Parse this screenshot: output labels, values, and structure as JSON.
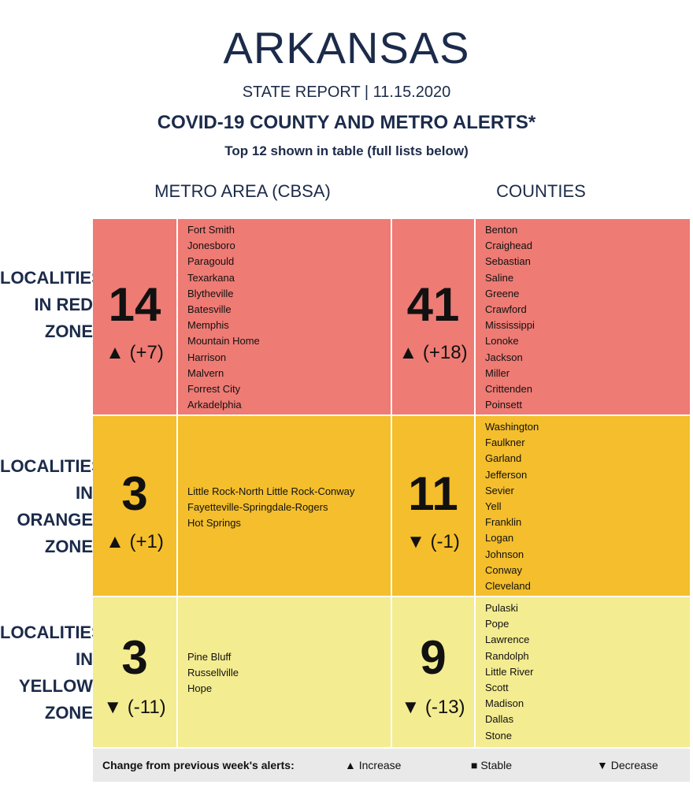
{
  "header": {
    "title": "ARKANSAS",
    "subtitle": "STATE REPORT | 11.15.2020",
    "alerts_title": "COVID-19 COUNTY AND METRO ALERTS*",
    "alerts_subtitle": "Top 12 shown in table (full lists below)"
  },
  "columns": {
    "metro": "METRO AREA (CBSA)",
    "counties": "COUNTIES"
  },
  "rows": {
    "red": {
      "label_lines": [
        "LOCALITIES",
        "IN RED",
        "ZONE"
      ],
      "metro_count": "14",
      "metro_change": "▲ (+7)",
      "metro_list": [
        "Fort Smith",
        "Jonesboro",
        "Paragould",
        "Texarkana",
        "Blytheville",
        "Batesville",
        "Memphis",
        "Mountain Home",
        "Harrison",
        "Malvern",
        "Forrest City",
        "Arkadelphia"
      ],
      "county_count": "41",
      "county_change": "▲ (+18)",
      "county_list": [
        "Benton",
        "Craighead",
        "Sebastian",
        "Saline",
        "Greene",
        "Crawford",
        "Mississippi",
        "Lonoke",
        "Jackson",
        "Miller",
        "Crittenden",
        "Poinsett"
      ]
    },
    "orange": {
      "label_lines": [
        "LOCALITIES",
        "IN ORANGE",
        "ZONE"
      ],
      "metro_count": "3",
      "metro_change": "▲ (+1)",
      "metro_list": [
        "Little Rock-North Little Rock-Conway",
        "Fayetteville-Springdale-Rogers",
        "Hot Springs"
      ],
      "county_count": "11",
      "county_change": "▼ (-1)",
      "county_list": [
        "Washington",
        "Faulkner",
        "Garland",
        "Jefferson",
        "Sevier",
        "Yell",
        "Franklin",
        "Logan",
        "Johnson",
        "Conway",
        "Cleveland"
      ]
    },
    "yellow": {
      "label_lines": [
        "LOCALITIES",
        "IN YELLOW",
        "ZONE"
      ],
      "metro_count": "3",
      "metro_change": "▼ (-11)",
      "metro_list": [
        "Pine Bluff",
        "Russellville",
        "Hope"
      ],
      "county_count": "9",
      "county_change": "▼ (-13)",
      "county_list": [
        "Pulaski",
        "Pope",
        "Lawrence",
        "Randolph",
        "Little River",
        "Scott",
        "Madison",
        "Dallas",
        "Stone"
      ]
    }
  },
  "legend": {
    "label": "Change from previous week's alerts:",
    "increase": "▲ Increase",
    "stable": "■ Stable",
    "decrease": "▼ Decrease"
  },
  "colors": {
    "red": "#ee7b74",
    "orange": "#f4be2c",
    "yellow": "#f4ec91",
    "title": "#1c2b4a"
  }
}
